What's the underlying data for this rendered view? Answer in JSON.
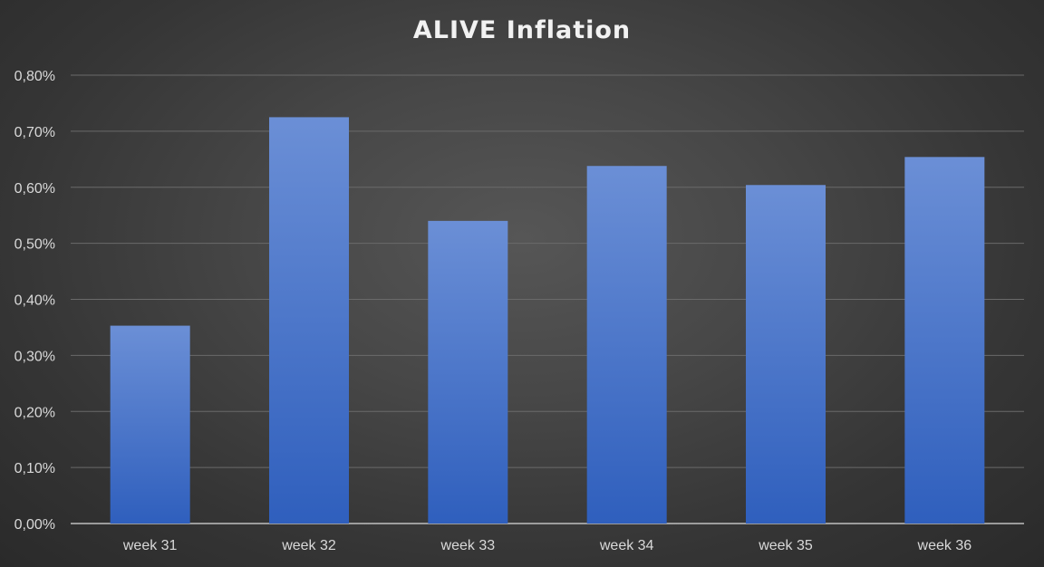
{
  "chart_data": {
    "type": "bar",
    "title": "ALIVE Inflation",
    "categories": [
      "week 31",
      "week 32",
      "week 33",
      "week 34",
      "week 35",
      "week 36"
    ],
    "values": [
      0.353,
      0.725,
      0.54,
      0.638,
      0.604,
      0.654
    ],
    "value_unit": "%",
    "ylim": [
      0,
      0.8
    ],
    "yticks": [
      "0,00%",
      "0,10%",
      "0,20%",
      "0,30%",
      "0,40%",
      "0,50%",
      "0,60%",
      "0,70%",
      "0,80%"
    ],
    "xlabel": "",
    "ylabel": "",
    "grid": true,
    "legend": "none",
    "colors": {
      "bar_top": "#6b8fd6",
      "bar_bottom": "#2f5fbd",
      "background": "#3c3c3c",
      "text": "#d9d9d9",
      "gridline": "#6a6a6a"
    }
  }
}
